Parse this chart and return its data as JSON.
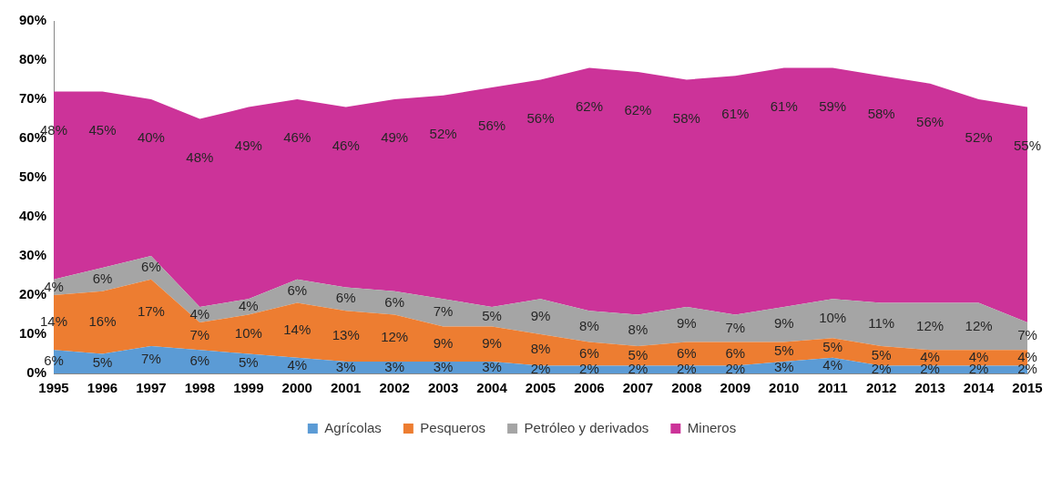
{
  "chart_data": {
    "type": "area",
    "stacked": true,
    "categories": [
      "1995",
      "1996",
      "1997",
      "1998",
      "1999",
      "2000",
      "2001",
      "2002",
      "2003",
      "2004",
      "2005",
      "2006",
      "2007",
      "2008",
      "2009",
      "2010",
      "2011",
      "2012",
      "2013",
      "2014",
      "2015"
    ],
    "ylim": [
      0,
      90
    ],
    "yticks": [
      {
        "value": 0,
        "label": "0%"
      },
      {
        "value": 10,
        "label": "10%"
      },
      {
        "value": 20,
        "label": "20%"
      },
      {
        "value": 30,
        "label": "30%"
      },
      {
        "value": 40,
        "label": "40%"
      },
      {
        "value": 50,
        "label": "50%"
      },
      {
        "value": 60,
        "label": "60%"
      },
      {
        "value": 70,
        "label": "70%"
      },
      {
        "value": 80,
        "label": "80%"
      },
      {
        "value": 90,
        "label": "90%"
      }
    ],
    "grid": false,
    "legend": "bottom",
    "series": [
      {
        "name": "Agrícolas",
        "color": "#5b9bd5",
        "values": [
          6,
          5,
          7,
          6,
          5,
          4,
          3,
          3,
          3,
          3,
          2,
          2,
          2,
          2,
          2,
          3,
          4,
          2,
          2,
          2,
          2
        ],
        "value_labels": [
          "6%",
          "5%",
          "7%",
          "6%",
          "5%",
          "4%",
          "3%",
          "3%",
          "3%",
          "3%",
          "2%",
          "2%",
          "2%",
          "2%",
          "2%",
          "3%",
          "4%",
          "2%",
          "2%",
          "2%",
          "2%"
        ]
      },
      {
        "name": "Pesqueros",
        "color": "#ed7d31",
        "values": [
          14,
          16,
          17,
          7,
          10,
          14,
          13,
          12,
          9,
          9,
          8,
          6,
          5,
          6,
          6,
          5,
          5,
          5,
          4,
          4,
          4
        ],
        "value_labels": [
          "14%",
          "16%",
          "17%",
          "7%",
          "10%",
          "14%",
          "13%",
          "12%",
          "9%",
          "9%",
          "8%",
          "6%",
          "5%",
          "6%",
          "6%",
          "5%",
          "5%",
          "5%",
          "4%",
          "4%",
          "4%"
        ]
      },
      {
        "name": "Petróleo y derivados",
        "color": "#a5a5a5",
        "values": [
          4,
          6,
          6,
          4,
          4,
          6,
          6,
          6,
          7,
          5,
          9,
          8,
          8,
          9,
          7,
          9,
          10,
          11,
          12,
          12,
          7
        ],
        "value_labels": [
          "4%",
          "6%",
          "6%",
          "4%",
          "4%",
          "6%",
          "6%",
          "6%",
          "7%",
          "5%",
          "9%",
          "8%",
          "8%",
          "9%",
          "7%",
          "9%",
          "10%",
          "11%",
          "12%",
          "12%",
          "7%"
        ]
      },
      {
        "name": "Mineros",
        "color": "#cc3399",
        "values": [
          48,
          45,
          40,
          48,
          49,
          46,
          46,
          49,
          52,
          56,
          56,
          62,
          62,
          58,
          61,
          61,
          59,
          58,
          56,
          52,
          55
        ],
        "value_labels": [
          "48%",
          "45%",
          "40%",
          "48%",
          "49%",
          "46%",
          "46%",
          "49%",
          "52%",
          "56%",
          "56%",
          "62%",
          "62%",
          "58%",
          "61%",
          "61%",
          "59%",
          "58%",
          "56%",
          "52%",
          "55%"
        ]
      }
    ]
  }
}
